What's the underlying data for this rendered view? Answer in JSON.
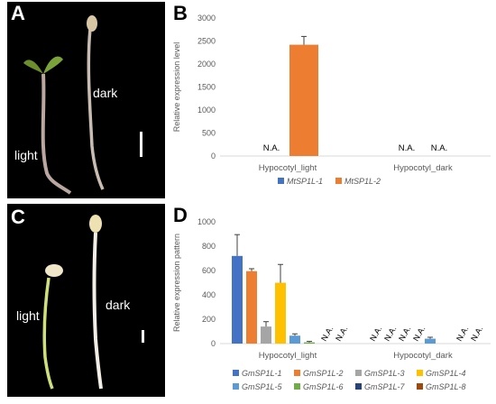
{
  "panels": {
    "A": {
      "letter": "A",
      "label_light": "light",
      "label_dark": "dark"
    },
    "B": {
      "letter": "B"
    },
    "C": {
      "letter": "C",
      "label_light": "light",
      "label_dark": "dark"
    },
    "D": {
      "letter": "D"
    }
  },
  "colors": {
    "photo_bg": "#000000",
    "series_blue": "#4472c4",
    "series_orange": "#ed7d31",
    "series_gray": "#a5a5a5",
    "series_yellow": "#ffc000",
    "series_lightblue": "#5b9bd5",
    "series_green": "#70ad47",
    "series_navy": "#264478",
    "series_brown": "#9e480e"
  },
  "chart_data": [
    {
      "panel": "B",
      "type": "bar",
      "ylabel": "Relative expression level",
      "ylim": [
        0,
        3000
      ],
      "yticks": [
        0,
        500,
        1000,
        1500,
        2000,
        2500,
        3000
      ],
      "categories": [
        "Hypocotyl_light",
        "Hypocotyl_dark"
      ],
      "series": [
        {
          "name": "MtSP1L-1",
          "color": "#4472c4",
          "values": [
            null,
            null
          ],
          "errors": [
            0,
            0
          ],
          "labels": [
            "N.A.",
            "N.A."
          ]
        },
        {
          "name": "MtSP1L-2",
          "color": "#ed7d31",
          "values": [
            2420,
            null
          ],
          "errors": [
            180,
            0
          ],
          "labels": [
            "",
            "N.A."
          ]
        }
      ],
      "legend": "bottom",
      "grid": false
    },
    {
      "panel": "D",
      "type": "bar",
      "ylabel": "Relative expression pattern",
      "ylim": [
        0,
        1000
      ],
      "yticks": [
        0,
        200,
        400,
        600,
        800,
        1000
      ],
      "categories": [
        "Hypocotyl_light",
        "Hypocotyl_dark"
      ],
      "series": [
        {
          "name": "GmSP1L-1",
          "color": "#4472c4",
          "values": [
            720,
            null
          ],
          "errors": [
            175,
            0
          ],
          "labels": [
            "",
            "N.A."
          ]
        },
        {
          "name": "GmSP1L-2",
          "color": "#ed7d31",
          "values": [
            595,
            null
          ],
          "errors": [
            20,
            0
          ],
          "labels": [
            "",
            "N.A."
          ]
        },
        {
          "name": "GmSP1L-3",
          "color": "#a5a5a5",
          "values": [
            140,
            null
          ],
          "errors": [
            40,
            0
          ],
          "labels": [
            "",
            "N.A."
          ]
        },
        {
          "name": "GmSP1L-4",
          "color": "#ffc000",
          "values": [
            500,
            null
          ],
          "errors": [
            150,
            0
          ],
          "labels": [
            "",
            "N.A."
          ]
        },
        {
          "name": "GmSP1L-5",
          "color": "#5b9bd5",
          "values": [
            65,
            40
          ],
          "errors": [
            15,
            12
          ],
          "labels": [
            "",
            ""
          ]
        },
        {
          "name": "GmSP1L-6",
          "color": "#70ad47",
          "values": [
            10,
            null
          ],
          "errors": [
            8,
            0
          ],
          "labels": [
            "",
            ""
          ]
        },
        {
          "name": "GmSP1L-7",
          "color": "#264478",
          "values": [
            null,
            null
          ],
          "errors": [
            0,
            0
          ],
          "labels": [
            "N.A.",
            "N.A."
          ]
        },
        {
          "name": "GmSP1L-8",
          "color": "#9e480e",
          "values": [
            null,
            null
          ],
          "errors": [
            0,
            0
          ],
          "labels": [
            "N.A.",
            "N.A."
          ]
        }
      ],
      "legend": "bottom",
      "grid": false
    }
  ]
}
